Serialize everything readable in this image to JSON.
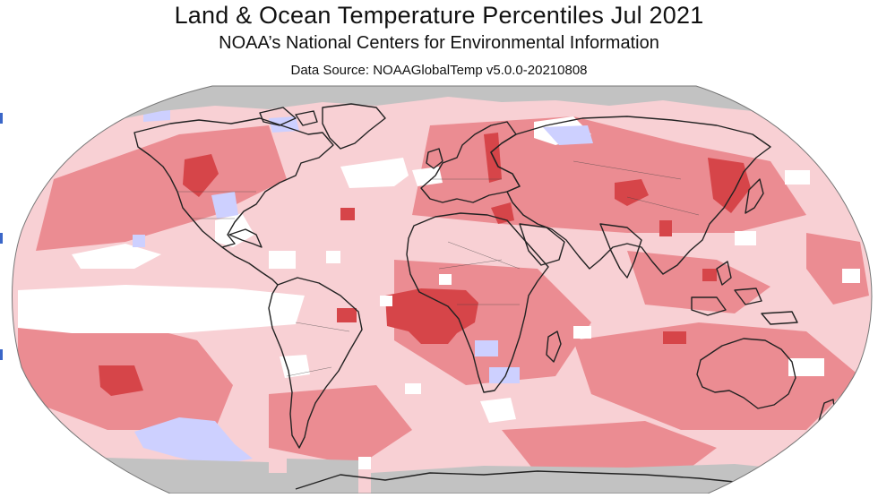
{
  "header": {
    "title": "Land & Ocean Temperature Percentiles Jul 2021",
    "subtitle": "NOAA’s National Centers for Environmental Information",
    "source": "Data Source: NOAAGlobalTemp v5.0.0-20210808"
  },
  "map": {
    "projection": "robinson",
    "colors": {
      "no_data": "#c2c2c2",
      "near_average": "#ffffff",
      "above_average": "#f8d0d4",
      "much_above_average": "#eb8c92",
      "record_warmest": "#d64549",
      "below_average": "#cdd0ff",
      "outline": "#222222"
    }
  }
}
